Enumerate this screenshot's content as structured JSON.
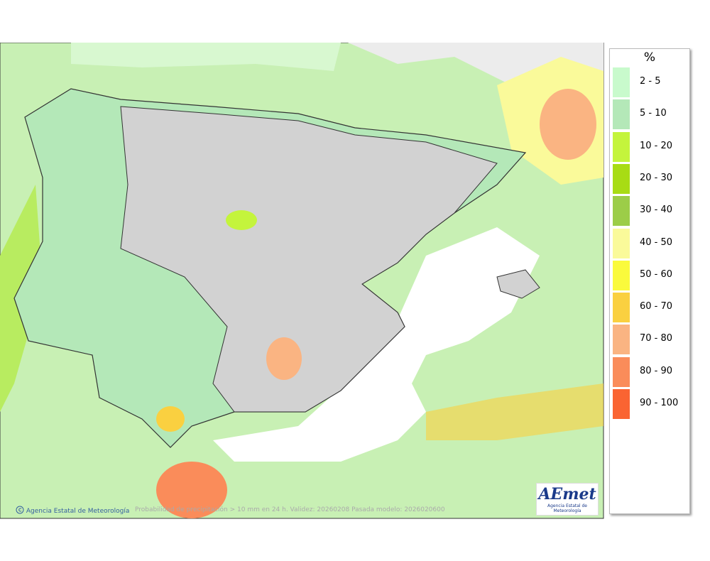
{
  "map": {
    "credit": "Agencia Estatal de Meteorología",
    "caption": "Probabilidad de precipitación > 10 mm en 24 h. Validez: 20260208 Pasada modelo: 2026020600",
    "logo": {
      "name": "AEmet",
      "subtitle": "Agencia Estatal de Meteorología"
    }
  },
  "legend": {
    "title": "%",
    "items": [
      {
        "label": "2 - 5",
        "color": "#c8facc"
      },
      {
        "label": "5 - 10",
        "color": "#b4e8b8"
      },
      {
        "label": "10 - 20",
        "color": "#c4f43c"
      },
      {
        "label": "20 - 30",
        "color": "#a8dc14"
      },
      {
        "label": "30 - 40",
        "color": "#9ccd48"
      },
      {
        "label": "40 - 50",
        "color": "#fafa9a"
      },
      {
        "label": "50 - 60",
        "color": "#fafa3c"
      },
      {
        "label": "60 - 70",
        "color": "#fad040"
      },
      {
        "label": "70 - 80",
        "color": "#fab482"
      },
      {
        "label": "80 - 90",
        "color": "#fa8c5a"
      },
      {
        "label": "90 - 100",
        "color": "#fa6432"
      }
    ]
  }
}
